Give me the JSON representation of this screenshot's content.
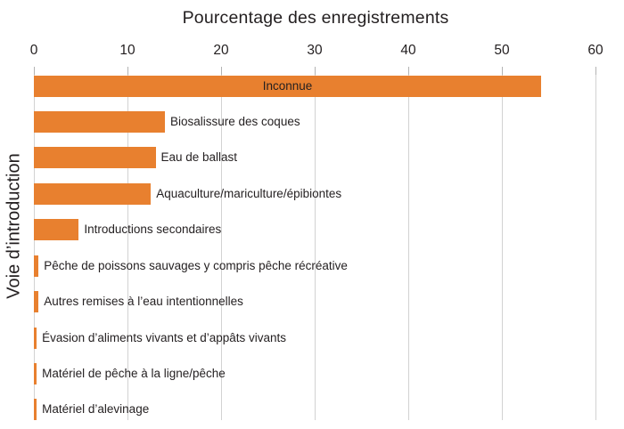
{
  "colors": {
    "bar": "#E8802F",
    "gridline": "#d2d2d2",
    "tick": "#b3b3b3",
    "text": "#231f20",
    "background": "#ffffff"
  },
  "chart_data": {
    "type": "bar",
    "orientation": "horizontal",
    "title": "Pourcentage des enregistrements",
    "xlabel": "Pourcentage des enregistrements",
    "ylabel": "Voie d’introduction",
    "axis_position": "top",
    "grid": true,
    "legend": false,
    "xlim": [
      0,
      60
    ],
    "x_ticks": [
      0,
      10,
      20,
      30,
      40,
      50,
      60
    ],
    "categories": [
      "Inconnue",
      "Biosalissure des coques",
      "Eau de ballast",
      "Aquaculture/mariculture/épibiontes",
      "Introductions secondaires",
      "Pêche de poissons sauvages y compris pêche récréative",
      "Autres remises à l’eau intentionnelles",
      "Évasion d’aliments vivants et d’appâts vivants",
      "Matériel de pêche à la ligne/pêche",
      "Matériel d’alevinage"
    ],
    "values": [
      54.2,
      14,
      13,
      12.5,
      4.8,
      0.5,
      0.5,
      0.3,
      0.3,
      0.3
    ],
    "bar_color": "#E8802F",
    "category_label_placement": [
      "inside",
      "outside",
      "outside",
      "outside",
      "outside",
      "outside",
      "outside",
      "outside",
      "outside",
      "outside"
    ]
  }
}
